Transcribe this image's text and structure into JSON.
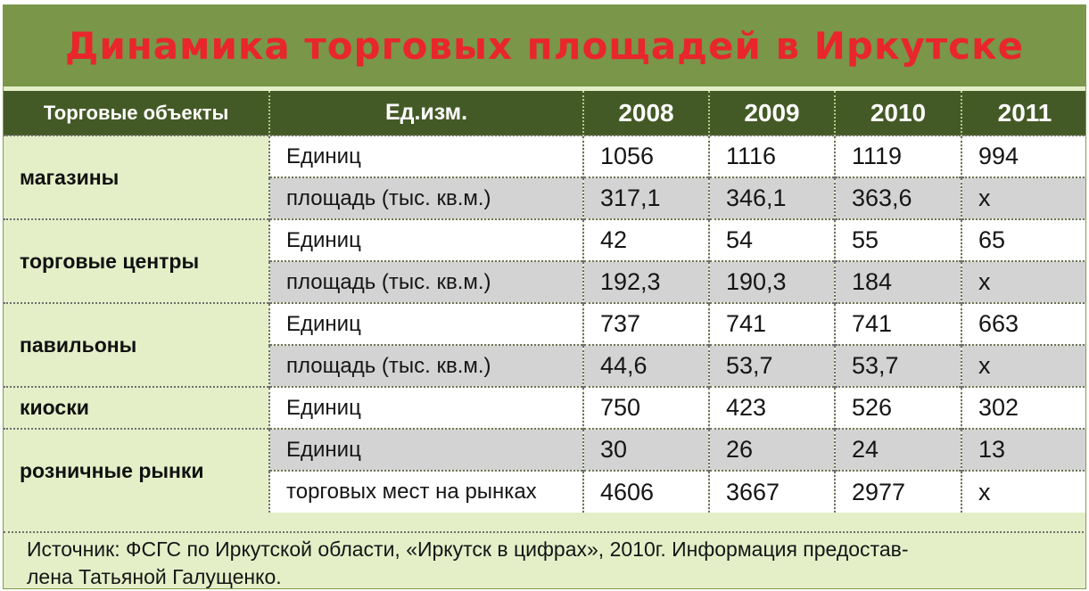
{
  "title": "Динамика торговых площадей в Иркутске",
  "headers": {
    "objects": "Торговые объекты",
    "unit": "Ед.изм.",
    "years": [
      "2008",
      "2009",
      "2010",
      "2011"
    ]
  },
  "groups": [
    {
      "name": "магазины",
      "rows": [
        {
          "unit": "Единиц",
          "values": [
            "1056",
            "1116",
            "1119",
            "994"
          ]
        },
        {
          "unit": "площадь (тыс. кв.м.)",
          "values": [
            "317,1",
            "346,1",
            "363,6",
            "х"
          ]
        }
      ]
    },
    {
      "name": "торговые центры",
      "rows": [
        {
          "unit": "Единиц",
          "values": [
            "42",
            "54",
            "55",
            "65"
          ]
        },
        {
          "unit": "площадь (тыс. кв.м.)",
          "values": [
            "192,3",
            "190,3",
            "184",
            "х"
          ]
        }
      ]
    },
    {
      "name": "павильоны",
      "rows": [
        {
          "unit": "Единиц",
          "values": [
            "737",
            "741",
            "741",
            "663"
          ]
        },
        {
          "unit": "площадь (тыс. кв.м.)",
          "values": [
            "44,6",
            "53,7",
            "53,7",
            "х"
          ]
        }
      ]
    },
    {
      "name": "киоски",
      "rows": [
        {
          "unit": "Единиц",
          "values": [
            "750",
            "423",
            "526",
            "302"
          ]
        }
      ]
    },
    {
      "name": "розничные рынки",
      "rows": [
        {
          "unit": "Единиц",
          "values": [
            "30",
            "26",
            "24",
            "13"
          ]
        },
        {
          "unit": "торговых мест на рынках",
          "values": [
            "4606",
            "3667",
            "2977",
            "х"
          ]
        }
      ]
    }
  ],
  "footer": {
    "line1": "Источник: ФСГС по Иркутской области, «Иркутск в цифрах», 2010г. Информация предостав-",
    "line2": "лена Татьяной Галущенко."
  },
  "colors": {
    "title_bar": "#7a9649",
    "title_text": "#e8262c",
    "header_bg": "#445a26",
    "panel_bg": "#e4efc8",
    "row_gray": "#d3d3d3"
  }
}
